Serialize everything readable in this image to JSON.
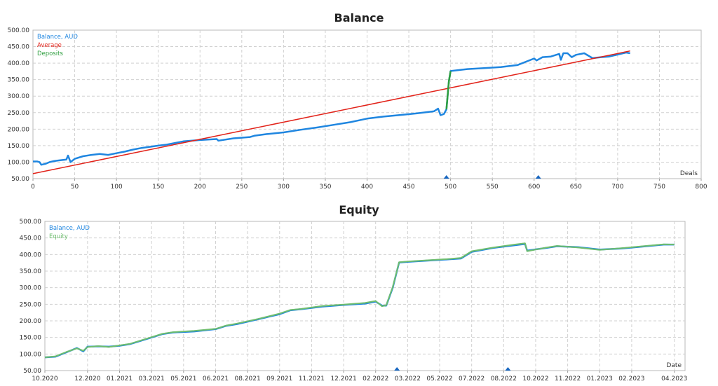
{
  "chart_data": [
    {
      "type": "line",
      "title": "Balance",
      "xlabel": "Deals",
      "ylabel": "",
      "xlim": [
        0,
        800
      ],
      "ylim": [
        50,
        500
      ],
      "x_ticks": [
        0,
        50,
        100,
        150,
        200,
        250,
        300,
        350,
        400,
        450,
        500,
        550,
        600,
        650,
        700,
        750,
        800
      ],
      "y_ticks": [
        "500.00",
        "450.00",
        "400.00",
        "350.00",
        "300.00",
        "250.00",
        "200.00",
        "150.00",
        "100.00",
        "50.00"
      ],
      "grid": true,
      "legend_position": "top-left",
      "series": [
        {
          "name": "Balance, AUD",
          "color": "#1f86e0",
          "x": [
            0,
            5,
            8,
            10,
            15,
            20,
            25,
            30,
            40,
            42,
            45,
            50,
            60,
            70,
            80,
            90,
            100,
            110,
            120,
            130,
            150,
            160,
            180,
            200,
            220,
            222,
            240,
            260,
            265,
            280,
            300,
            320,
            340,
            360,
            380,
            400,
            420,
            440,
            460,
            480,
            485,
            488,
            492,
            495,
            498,
            500,
            520,
            540,
            560,
            580,
            600,
            603,
            610,
            620,
            630,
            632,
            635,
            640,
            645,
            650,
            660,
            670,
            680,
            690,
            700,
            710,
            715
          ],
          "y": [
            102,
            102,
            100,
            92,
            95,
            100,
            103,
            105,
            108,
            120,
            100,
            110,
            118,
            122,
            125,
            122,
            127,
            132,
            138,
            143,
            150,
            153,
            163,
            167,
            170,
            165,
            172,
            176,
            180,
            185,
            190,
            198,
            205,
            213,
            221,
            232,
            238,
            243,
            248,
            254,
            262,
            242,
            246,
            260,
            345,
            376,
            382,
            385,
            388,
            394,
            414,
            408,
            418,
            420,
            428,
            410,
            430,
            430,
            418,
            425,
            430,
            415,
            418,
            420,
            426,
            432,
            430
          ]
        },
        {
          "name": "Average",
          "color": "#e2231a",
          "x": [
            0,
            715
          ],
          "y": [
            65,
            437
          ]
        },
        {
          "name": "Deposits",
          "color": "#2e9e3e",
          "x": [
            495,
            498,
            500
          ],
          "y": [
            260,
            345,
            376
          ]
        }
      ],
      "markers": [
        495,
        605
      ],
      "marker_color": "#1565c0"
    },
    {
      "type": "line",
      "title": "Equity",
      "xlabel": "Date",
      "ylabel": "",
      "xlim": [
        0,
        30
      ],
      "ylim": [
        50,
        500
      ],
      "x_ticks": [
        "10.2020",
        "12.2020",
        "01.2021",
        "03.2021",
        "05.2021",
        "06.2021",
        "08.2021",
        "09.2021",
        "11.2021",
        "12.2021",
        "02.2022",
        "03.2022",
        "05.2022",
        "07.2022",
        "08.2022",
        "10.2022",
        "11.2022",
        "01.2023",
        "02.2023",
        "04.2023"
      ],
      "x_tick_positions": [
        0,
        2,
        3.5,
        5,
        6.5,
        8,
        9.5,
        11,
        12.5,
        14,
        15.5,
        17,
        18.5,
        20,
        21.5,
        23,
        24.5,
        26,
        27.5,
        29.5
      ],
      "y_ticks": [
        "500.00",
        "450.00",
        "400.00",
        "350.00",
        "300.00",
        "250.00",
        "200.00",
        "150.00",
        "100.00",
        "50.00"
      ],
      "grid": true,
      "legend_position": "top-left",
      "series": [
        {
          "name": "Balance, AUD",
          "color": "#1f86e0",
          "x": [
            0,
            0.5,
            1,
            1.5,
            1.8,
            2,
            2.5,
            3,
            3.5,
            4,
            4.5,
            5,
            5.5,
            6,
            7,
            8,
            8.5,
            9,
            10,
            11,
            11.5,
            12,
            13,
            14,
            15,
            15.5,
            15.8,
            16,
            16.3,
            16.6,
            17,
            18,
            19,
            19.5,
            20,
            21,
            22,
            22.5,
            22.6,
            23.5,
            24,
            25,
            26,
            27,
            28,
            29,
            29.5
          ],
          "y": [
            90,
            92,
            105,
            118,
            108,
            122,
            123,
            122,
            125,
            130,
            140,
            150,
            160,
            165,
            168,
            175,
            185,
            190,
            205,
            220,
            232,
            235,
            243,
            248,
            252,
            258,
            246,
            246,
            300,
            376,
            378,
            382,
            386,
            388,
            408,
            420,
            428,
            432,
            412,
            420,
            425,
            422,
            415,
            418,
            424,
            430,
            430
          ]
        },
        {
          "name": "Equity",
          "color": "#6ebd6e",
          "x": [
            0,
            0.5,
            1,
            1.5,
            1.8,
            2,
            2.5,
            3,
            3.5,
            4,
            4.5,
            5,
            5.5,
            6,
            7,
            8,
            8.5,
            9,
            10,
            11,
            11.5,
            12,
            13,
            14,
            15,
            15.5,
            15.8,
            16,
            16.3,
            16.6,
            17,
            18,
            19,
            19.5,
            20,
            21,
            22,
            22.5,
            22.6,
            23.5,
            24,
            25,
            26,
            27,
            28,
            29,
            29.5
          ],
          "y": [
            90,
            93,
            106,
            117,
            110,
            121,
            124,
            121,
            126,
            131,
            141,
            151,
            161,
            166,
            170,
            176,
            186,
            192,
            206,
            222,
            233,
            236,
            245,
            249,
            254,
            260,
            244,
            247,
            302,
            377,
            379,
            383,
            387,
            390,
            410,
            421,
            430,
            434,
            410,
            421,
            426,
            421,
            414,
            419,
            425,
            431,
            430
          ]
        }
      ],
      "markers": [
        16.5,
        21.7
      ],
      "marker_color": "#1565c0"
    }
  ]
}
